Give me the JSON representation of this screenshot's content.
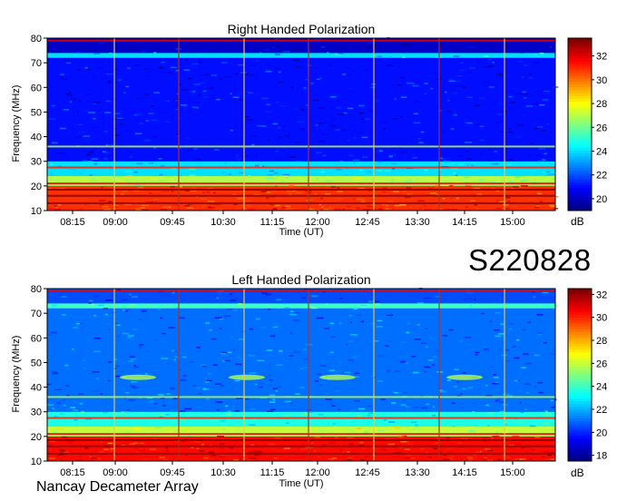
{
  "station_id": "S220828",
  "footer": "Nancay Decameter Array",
  "colors": {
    "low": "#00007f",
    "mid": "#00c8ff",
    "high": "#7f0000"
  },
  "chart_data": [
    {
      "type": "heatmap",
      "title": "Right Handed Polarization",
      "xlabel": "Time (UT)",
      "ylabel": "Frequency (MHz)",
      "x_ticks": [
        "08:15",
        "09:00",
        "09:45",
        "10:30",
        "11:15",
        "12:00",
        "12:45",
        "13:30",
        "14:15",
        "15:00"
      ],
      "y_ticks": [
        10,
        20,
        30,
        40,
        50,
        60,
        70,
        80
      ],
      "ylim": [
        10,
        80
      ],
      "colorbar": {
        "label": "dB",
        "ticks": [
          20,
          22,
          24,
          26,
          28,
          30,
          32
        ],
        "range": [
          19,
          33.5
        ]
      },
      "bands": [
        {
          "freq": [
            10,
            20
          ],
          "level": 31
        },
        {
          "freq": [
            20,
            24
          ],
          "level": 27
        },
        {
          "freq": [
            24,
            30
          ],
          "level": 24
        },
        {
          "freq": [
            30,
            72
          ],
          "level": 21
        },
        {
          "freq": [
            72,
            74
          ],
          "level": 24
        },
        {
          "freq": [
            74,
            80
          ],
          "level": 20
        }
      ]
    },
    {
      "type": "heatmap",
      "title": "Left Handed Polarization",
      "xlabel": "Time (UT)",
      "ylabel": "Frequency (MHz)",
      "x_ticks": [
        "08:15",
        "09:00",
        "09:45",
        "10:30",
        "11:15",
        "12:00",
        "12:45",
        "13:30",
        "14:15",
        "15:00"
      ],
      "y_ticks": [
        10,
        20,
        30,
        40,
        50,
        60,
        70,
        80
      ],
      "ylim": [
        10,
        80
      ],
      "colorbar": {
        "label": "dB",
        "ticks": [
          18,
          20,
          22,
          24,
          26,
          28,
          30,
          32
        ],
        "range": [
          17.5,
          32.5
        ]
      },
      "bands": [
        {
          "freq": [
            10,
            20
          ],
          "level": 30.5
        },
        {
          "freq": [
            20,
            24
          ],
          "level": 26
        },
        {
          "freq": [
            24,
            30
          ],
          "level": 23.5
        },
        {
          "freq": [
            30,
            72
          ],
          "level": 21
        },
        {
          "freq": [
            72,
            74
          ],
          "level": 24
        },
        {
          "freq": [
            74,
            80
          ],
          "level": 20.5
        }
      ]
    }
  ]
}
